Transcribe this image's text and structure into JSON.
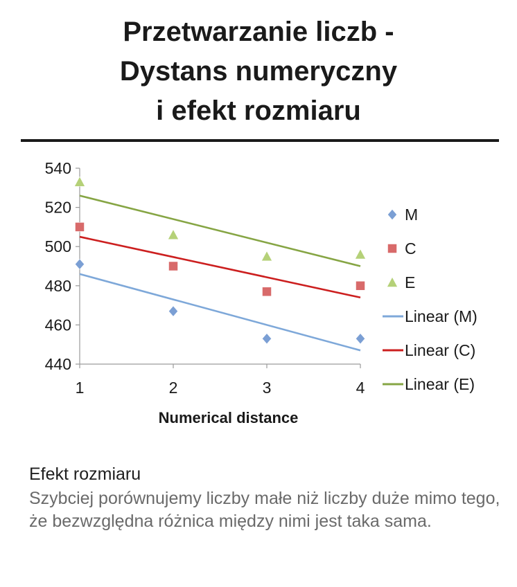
{
  "title": {
    "line1": "Przetwarzanie liczb -",
    "line2": "Dystans numeryczny",
    "line3": "i efekt rozmiaru"
  },
  "chart_data": {
    "type": "scatter",
    "xlabel": "Numerical distance",
    "ylabel": "",
    "x": [
      1,
      2,
      3,
      4
    ],
    "xlim": [
      1,
      4
    ],
    "ylim": [
      440,
      540
    ],
    "y_ticks": [
      440,
      460,
      480,
      500,
      520,
      540
    ],
    "x_ticks": [
      1,
      2,
      3,
      4
    ],
    "grid": false,
    "legend_position": "right",
    "series": [
      {
        "name": "M",
        "marker": "diamond",
        "color": "#7b9fd4",
        "values": [
          491,
          467,
          453,
          453
        ]
      },
      {
        "name": "C",
        "marker": "square",
        "color": "#d86a6a",
        "values": [
          510,
          490,
          477,
          480
        ]
      },
      {
        "name": "E",
        "marker": "triangle",
        "color": "#b5d178",
        "values": [
          533,
          506,
          495,
          496
        ]
      }
    ],
    "trendlines": [
      {
        "name": "Linear (M)",
        "color": "#7ea8d9",
        "start": 486,
        "end": 447
      },
      {
        "name": "Linear (C)",
        "color": "#cc1f1f",
        "start": 505,
        "end": 474
      },
      {
        "name": "Linear (E)",
        "color": "#86a544",
        "start": 526,
        "end": 490
      }
    ]
  },
  "caption": {
    "heading": "Efekt rozmiaru",
    "body": "Szybciej porównujemy liczby małe niż liczby duże mimo tego, że bezwzględna różnica między nimi jest taka sama."
  }
}
